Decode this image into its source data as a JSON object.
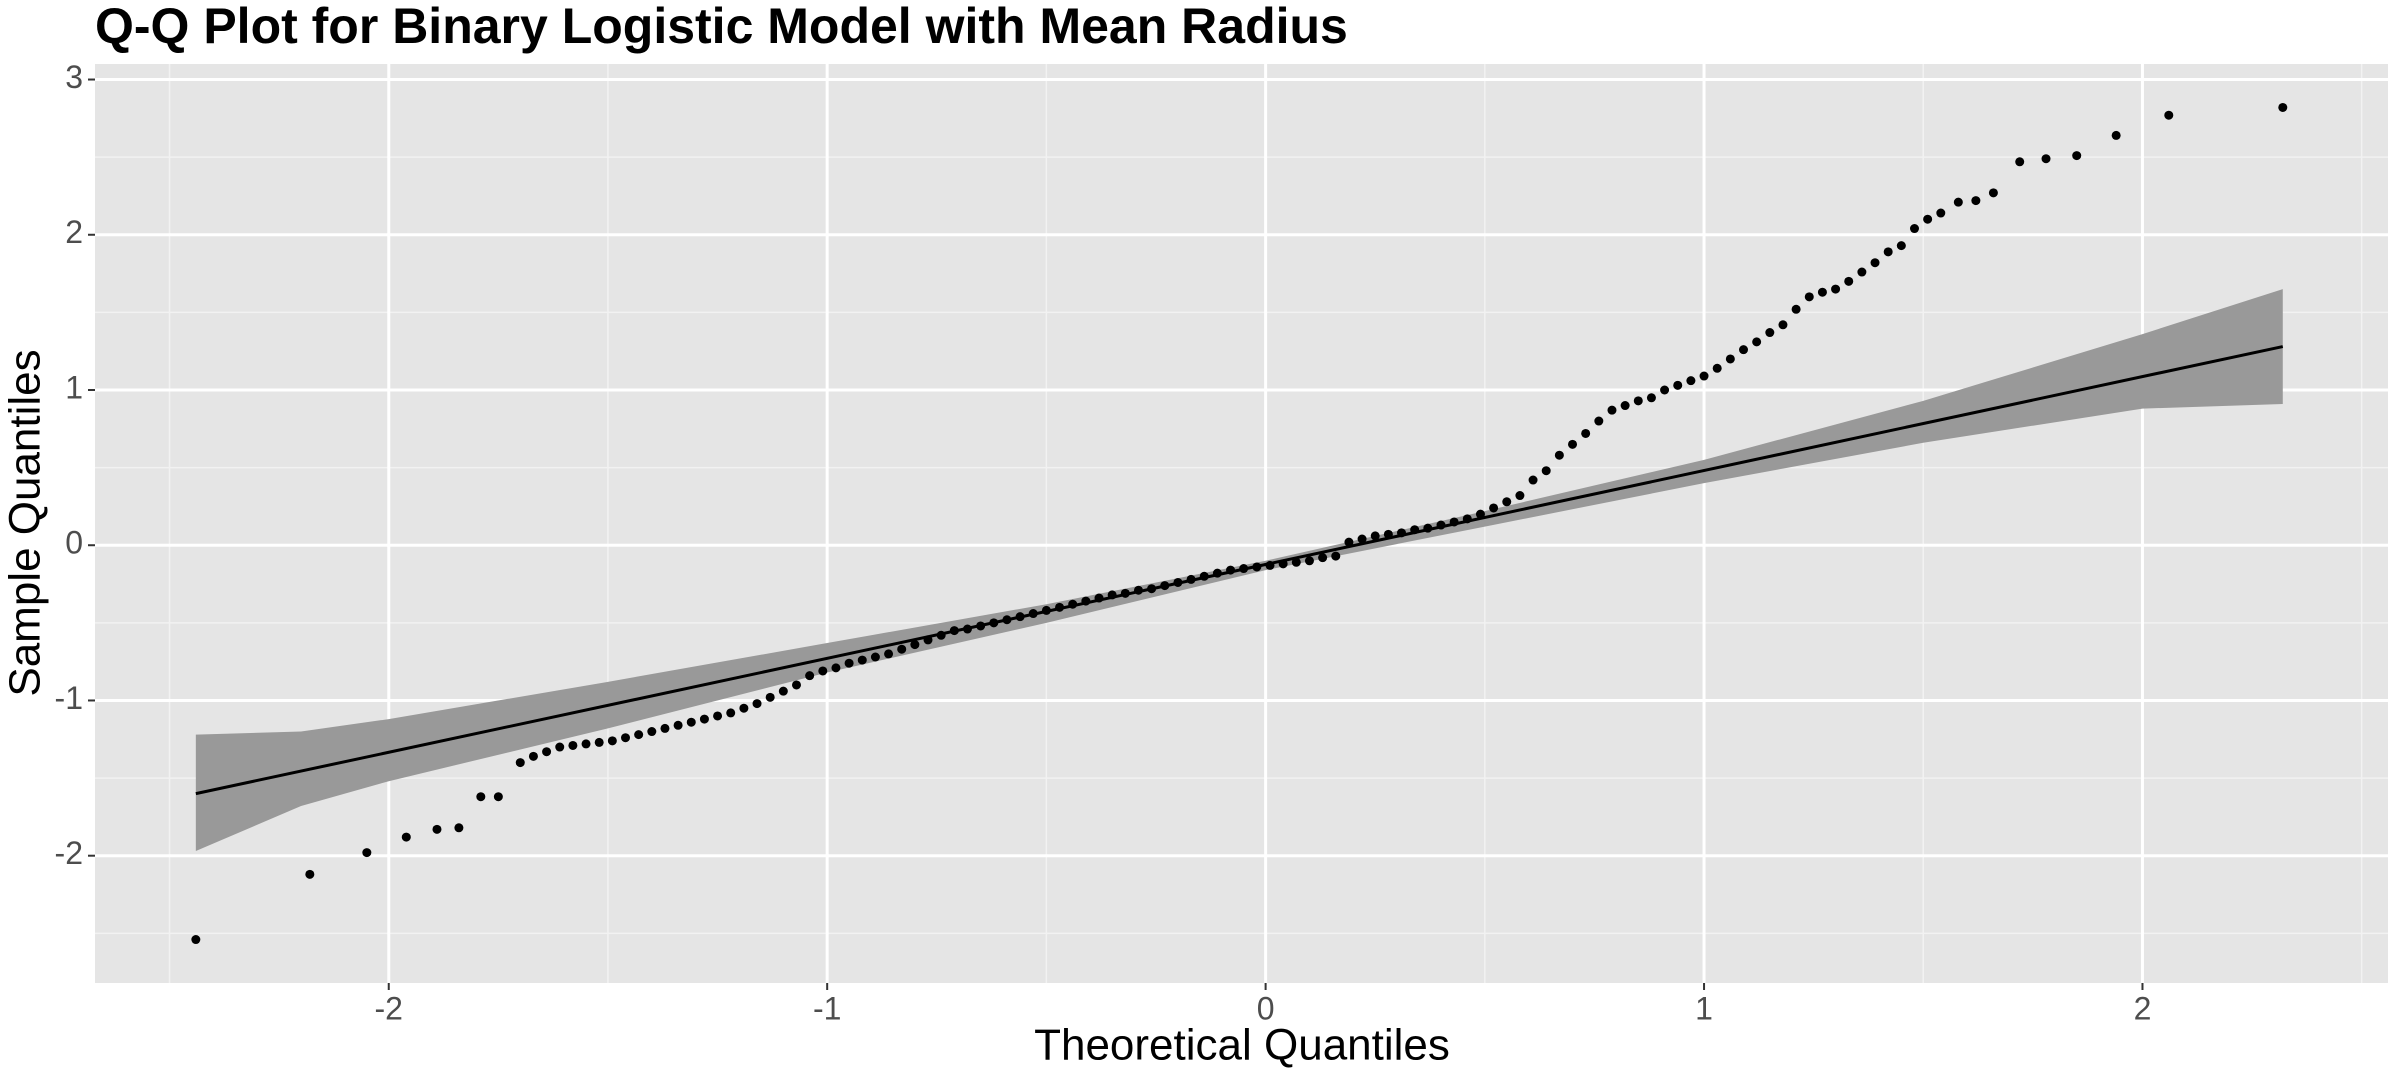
{
  "chart_data": {
    "type": "scatter",
    "title": "Q-Q Plot for Binary Logistic Model with Mean Radius",
    "x_label": "Theoretical Quantiles",
    "y_label": "Sample Quantiles",
    "xlim": [
      -2.67,
      2.56
    ],
    "ylim": [
      -2.82,
      3.1
    ],
    "xticks": [
      -2,
      -1,
      0,
      1,
      2
    ],
    "yticks": [
      -2,
      -1,
      0,
      1,
      2,
      3
    ],
    "grid": true,
    "points": {
      "color": "#000000",
      "x": [
        -2.44,
        -2.18,
        -2.05,
        -1.96,
        -1.89,
        -1.84,
        -1.79,
        -1.75,
        -1.7,
        -1.67,
        -1.64,
        -1.61,
        -1.58,
        -1.55,
        -1.52,
        -1.49,
        -1.46,
        -1.43,
        -1.4,
        -1.37,
        -1.34,
        -1.31,
        -1.28,
        -1.25,
        -1.22,
        -1.19,
        -1.16,
        -1.13,
        -1.1,
        -1.07,
        -1.04,
        -1.01,
        -0.98,
        -0.95,
        -0.92,
        -0.89,
        -0.86,
        -0.83,
        -0.8,
        -0.77,
        -0.74,
        -0.71,
        -0.68,
        -0.65,
        -0.62,
        -0.59,
        -0.56,
        -0.53,
        -0.5,
        -0.47,
        -0.44,
        -0.41,
        -0.38,
        -0.35,
        -0.32,
        -0.29,
        -0.26,
        -0.23,
        -0.2,
        -0.17,
        -0.14,
        -0.11,
        -0.08,
        -0.05,
        -0.02,
        0.01,
        0.04,
        0.07,
        0.1,
        0.13,
        0.16,
        0.19,
        0.22,
        0.25,
        0.28,
        0.31,
        0.34,
        0.37,
        0.4,
        0.43,
        0.46,
        0.49,
        0.52,
        0.55,
        0.58,
        0.61,
        0.64,
        0.67,
        0.7,
        0.73,
        0.76,
        0.79,
        0.82,
        0.85,
        0.88,
        0.91,
        0.94,
        0.97,
        1.0,
        1.03,
        1.06,
        1.09,
        1.12,
        1.15,
        1.18,
        1.21,
        1.24,
        1.27,
        1.3,
        1.33,
        1.36,
        1.39,
        1.42,
        1.45,
        1.48,
        1.51,
        1.54,
        1.58,
        1.62,
        1.66,
        1.72,
        1.78,
        1.85,
        1.94,
        2.06,
        2.32
      ],
      "y": [
        -2.54,
        -2.12,
        -1.98,
        -1.88,
        -1.83,
        -1.82,
        -1.62,
        -1.62,
        -1.4,
        -1.36,
        -1.33,
        -1.3,
        -1.29,
        -1.28,
        -1.27,
        -1.26,
        -1.24,
        -1.22,
        -1.2,
        -1.18,
        -1.16,
        -1.14,
        -1.12,
        -1.1,
        -1.08,
        -1.05,
        -1.02,
        -0.98,
        -0.94,
        -0.9,
        -0.84,
        -0.81,
        -0.79,
        -0.76,
        -0.74,
        -0.72,
        -0.7,
        -0.67,
        -0.64,
        -0.61,
        -0.58,
        -0.55,
        -0.54,
        -0.52,
        -0.5,
        -0.48,
        -0.46,
        -0.44,
        -0.42,
        -0.4,
        -0.38,
        -0.36,
        -0.34,
        -0.32,
        -0.31,
        -0.29,
        -0.28,
        -0.26,
        -0.24,
        -0.22,
        -0.2,
        -0.18,
        -0.16,
        -0.15,
        -0.14,
        -0.13,
        -0.12,
        -0.11,
        -0.1,
        -0.08,
        -0.07,
        0.02,
        0.04,
        0.06,
        0.07,
        0.08,
        0.1,
        0.11,
        0.13,
        0.15,
        0.17,
        0.2,
        0.24,
        0.28,
        0.32,
        0.42,
        0.48,
        0.58,
        0.65,
        0.72,
        0.8,
        0.87,
        0.9,
        0.93,
        0.95,
        1.0,
        1.03,
        1.06,
        1.09,
        1.14,
        1.2,
        1.26,
        1.31,
        1.37,
        1.42,
        1.52,
        1.6,
        1.63,
        1.65,
        1.7,
        1.76,
        1.82,
        1.89,
        1.93,
        2.04,
        2.1,
        2.14,
        2.21,
        2.22,
        2.27,
        2.47,
        2.49,
        2.51,
        2.64,
        2.77,
        2.82
      ]
    },
    "reference_line": {
      "color": "#000000",
      "x": [
        -2.44,
        2.32
      ],
      "y": [
        -1.6,
        1.28
      ]
    },
    "confidence_band": {
      "color": "#999999",
      "x": [
        -2.44,
        -2.2,
        -2.0,
        -1.5,
        -1.0,
        -0.5,
        0,
        0.5,
        1.0,
        1.5,
        2.0,
        2.32
      ],
      "upper": [
        -1.22,
        -1.2,
        -1.12,
        -0.88,
        -0.63,
        -0.38,
        -0.1,
        0.22,
        0.55,
        0.93,
        1.36,
        1.65
      ],
      "lower": [
        -1.97,
        -1.68,
        -1.52,
        -1.18,
        -0.82,
        -0.5,
        -0.16,
        0.12,
        0.4,
        0.66,
        0.88,
        0.91
      ]
    }
  }
}
